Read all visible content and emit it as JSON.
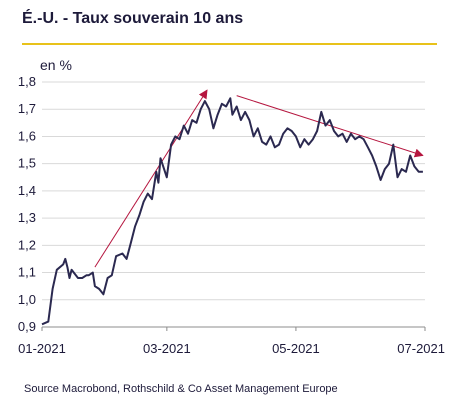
{
  "chart_data": {
    "type": "line",
    "title": "É.-U. - Taux souverain 10 ans",
    "unit_label": "en %",
    "source": "Source Macrobond, Rothschild & Co Asset Management Europe",
    "xlabel": "",
    "ylabel": "",
    "ylim": [
      0.9,
      1.8
    ],
    "yticks": [
      0.9,
      1.0,
      1.1,
      1.2,
      1.3,
      1.4,
      1.5,
      1.6,
      1.7,
      1.8
    ],
    "ytick_labels": [
      "0,9",
      "1,0",
      "1,1",
      "1,2",
      "1,3",
      "1,4",
      "1,5",
      "1,6",
      "1,7",
      "1,8"
    ],
    "xlim": [
      "2021-01-01",
      "2021-07-01"
    ],
    "xtick_labels": [
      "01-2021",
      "03-2021",
      "05-2021",
      "07-2021"
    ],
    "xticks": [
      "2021-01-01",
      "2021-03-01",
      "2021-05-01",
      "2021-07-01"
    ],
    "grid": true,
    "colors": {
      "line": "#2b2950",
      "trend": "#b5163f",
      "grid": "#d9d9d9",
      "rule": "#e8c21a"
    },
    "series": [
      {
        "values": [
          [
            "2021-01-01",
            0.91
          ],
          [
            "2021-01-04",
            0.92
          ],
          [
            "2021-01-06",
            1.04
          ],
          [
            "2021-01-08",
            1.11
          ],
          [
            "2021-01-11",
            1.13
          ],
          [
            "2021-01-12",
            1.15
          ],
          [
            "2021-01-13",
            1.12
          ],
          [
            "2021-01-14",
            1.08
          ],
          [
            "2021-01-15",
            1.11
          ],
          [
            "2021-01-18",
            1.08
          ],
          [
            "2021-01-20",
            1.08
          ],
          [
            "2021-01-22",
            1.09
          ],
          [
            "2021-01-23",
            1.09
          ],
          [
            "2021-01-25",
            1.1
          ],
          [
            "2021-01-26",
            1.05
          ],
          [
            "2021-01-28",
            1.04
          ],
          [
            "2021-01-30",
            1.02
          ],
          [
            "2021-02-01",
            1.08
          ],
          [
            "2021-02-03",
            1.09
          ],
          [
            "2021-02-05",
            1.16
          ],
          [
            "2021-02-08",
            1.17
          ],
          [
            "2021-02-10",
            1.15
          ],
          [
            "2021-02-12",
            1.21
          ],
          [
            "2021-02-14",
            1.27
          ],
          [
            "2021-02-16",
            1.31
          ],
          [
            "2021-02-18",
            1.36
          ],
          [
            "2021-02-20",
            1.39
          ],
          [
            "2021-02-22",
            1.37
          ],
          [
            "2021-02-24",
            1.47
          ],
          [
            "2021-02-25",
            1.43
          ],
          [
            "2021-02-26",
            1.52
          ],
          [
            "2021-03-01",
            1.45
          ],
          [
            "2021-03-03",
            1.57
          ],
          [
            "2021-03-05",
            1.6
          ],
          [
            "2021-03-07",
            1.59
          ],
          [
            "2021-03-09",
            1.64
          ],
          [
            "2021-03-11",
            1.61
          ],
          [
            "2021-03-13",
            1.66
          ],
          [
            "2021-03-15",
            1.65
          ],
          [
            "2021-03-17",
            1.7
          ],
          [
            "2021-03-19",
            1.73
          ],
          [
            "2021-03-21",
            1.7
          ],
          [
            "2021-03-23",
            1.63
          ],
          [
            "2021-03-25",
            1.68
          ],
          [
            "2021-03-27",
            1.72
          ],
          [
            "2021-03-29",
            1.71
          ],
          [
            "2021-03-31",
            1.74
          ],
          [
            "2021-04-01",
            1.68
          ],
          [
            "2021-04-03",
            1.71
          ],
          [
            "2021-04-05",
            1.66
          ],
          [
            "2021-04-07",
            1.69
          ],
          [
            "2021-04-09",
            1.66
          ],
          [
            "2021-04-11",
            1.6
          ],
          [
            "2021-04-13",
            1.63
          ],
          [
            "2021-04-15",
            1.58
          ],
          [
            "2021-04-17",
            1.57
          ],
          [
            "2021-04-19",
            1.6
          ],
          [
            "2021-04-21",
            1.56
          ],
          [
            "2021-04-23",
            1.57
          ],
          [
            "2021-04-25",
            1.61
          ],
          [
            "2021-04-27",
            1.63
          ],
          [
            "2021-04-29",
            1.62
          ],
          [
            "2021-05-01",
            1.6
          ],
          [
            "2021-05-03",
            1.56
          ],
          [
            "2021-05-05",
            1.59
          ],
          [
            "2021-05-07",
            1.57
          ],
          [
            "2021-05-09",
            1.59
          ],
          [
            "2021-05-11",
            1.62
          ],
          [
            "2021-05-13",
            1.69
          ],
          [
            "2021-05-15",
            1.64
          ],
          [
            "2021-05-17",
            1.66
          ],
          [
            "2021-05-19",
            1.62
          ],
          [
            "2021-05-21",
            1.6
          ],
          [
            "2021-05-23",
            1.61
          ],
          [
            "2021-05-25",
            1.58
          ],
          [
            "2021-05-27",
            1.61
          ],
          [
            "2021-05-29",
            1.59
          ],
          [
            "2021-05-31",
            1.6
          ],
          [
            "2021-06-02",
            1.59
          ],
          [
            "2021-06-04",
            1.56
          ],
          [
            "2021-06-06",
            1.53
          ],
          [
            "2021-06-08",
            1.49
          ],
          [
            "2021-06-10",
            1.44
          ],
          [
            "2021-06-12",
            1.48
          ],
          [
            "2021-06-14",
            1.5
          ],
          [
            "2021-06-16",
            1.57
          ],
          [
            "2021-06-18",
            1.45
          ],
          [
            "2021-06-20",
            1.48
          ],
          [
            "2021-06-22",
            1.47
          ],
          [
            "2021-06-24",
            1.53
          ],
          [
            "2021-06-26",
            1.49
          ],
          [
            "2021-06-28",
            1.47
          ],
          [
            "2021-06-30",
            1.47
          ]
        ]
      }
    ],
    "trendlines": [
      {
        "from": [
          "2021-01-26",
          1.12
        ],
        "to": [
          "2021-03-20",
          1.77
        ]
      },
      {
        "from": [
          "2021-04-03",
          1.75
        ],
        "to": [
          "2021-06-30",
          1.53
        ]
      }
    ]
  }
}
